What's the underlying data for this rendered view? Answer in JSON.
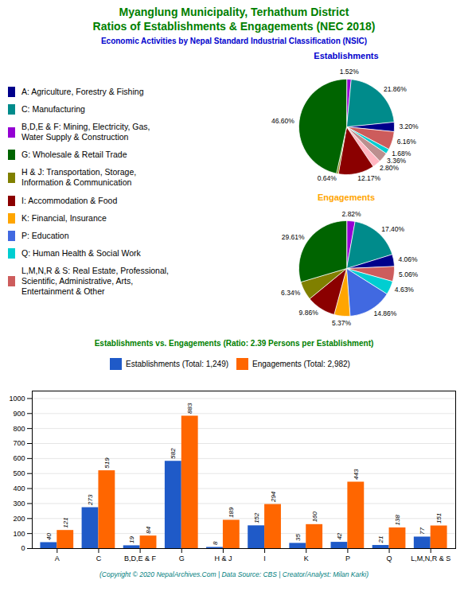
{
  "title": "Myanglung Municipality, Terhathum District\nRatios of Establishments & Engagements (NEC 2018)",
  "title_color": "#008000",
  "subtitle": "Economic Activities by Nepal Standard Industrial Classification (NSIC)",
  "subtitle_color": "#0000CD",
  "legend_entries": [
    {
      "name": "A: Agriculture, Forestry & Fishing",
      "color": "#00008B"
    },
    {
      "name": "C: Manufacturing",
      "color": "#008B8B"
    },
    {
      "name": "B,D,E & F: Mining, Electricity, Gas,\nWater Supply & Construction",
      "color": "#9400D3"
    },
    {
      "name": "G: Wholesale & Retail Trade",
      "color": "#006400"
    },
    {
      "name": "H & J: Transportation, Storage,\nInformation & Communication",
      "color": "#808000"
    },
    {
      "name": "I: Accommodation & Food",
      "color": "#8B0000"
    },
    {
      "name": "K: Financial, Insurance",
      "color": "#FFA500"
    },
    {
      "name": "P: Education",
      "color": "#4169E1"
    },
    {
      "name": "Q: Human Health & Social Work",
      "color": "#00CED1"
    },
    {
      "name": "L,M,N,R & S: Real Estate, Professional,\nScientific, Administrative, Arts,\nEntertainment & Other",
      "color": "#CD5C5C"
    }
  ],
  "annotations": [
    {
      "text": "(Copyright © 2020 NepalArchives.Com | Data Source: CBS | Creator/Analyst: Milan Karki)",
      "color": "#008080"
    }
  ],
  "chart_data": [
    {
      "type": "pie",
      "title": "Establishments",
      "title_color": "#0000CD",
      "values": [
        1.52,
        21.86,
        3.2,
        6.16,
        1.68,
        3.36,
        2.8,
        12.17,
        0.64,
        46.6
      ],
      "value_labels": [
        "1.52%",
        "21.86%",
        "3.20%",
        "6.16%",
        "1.68%",
        "3.36%",
        "2.80%",
        "12.17%",
        "0.64%",
        "46.60%"
      ],
      "colors": [
        "#9400D3",
        "#008B8B",
        "#00008B",
        "#CD5C5C",
        "#00CED1",
        "#BC8F8F",
        "#FFB6C1",
        "#8B0000",
        "#808000",
        "#006400"
      ],
      "data_labels": true
    },
    {
      "type": "pie",
      "title": "Engagements",
      "title_color": "#FFA500",
      "values": [
        2.82,
        17.4,
        4.06,
        5.06,
        4.63,
        14.86,
        5.37,
        9.86,
        6.34,
        29.61
      ],
      "value_labels": [
        "2.82%",
        "17.40%",
        "4.06%",
        "5.06%",
        "4.63%",
        "14.86%",
        "5.37%",
        "9.86%",
        "6.34%",
        "29.61%"
      ],
      "colors": [
        "#9400D3",
        "#008B8B",
        "#00008B",
        "#CD5C5C",
        "#00CED1",
        "#4169E1",
        "#FFA500",
        "#8B0000",
        "#808000",
        "#006400"
      ],
      "data_labels": true
    },
    {
      "type": "bar",
      "title": "Establishments vs. Engagements (Ratio: 2.39 Persons per Establishment)",
      "title_color": "#008000",
      "categories": [
        "A",
        "C",
        "B,D,E & F",
        "G",
        "H & J",
        "I",
        "K",
        "P",
        "Q",
        "L,M,N,R & S"
      ],
      "series": [
        {
          "name": "Establishments (Total: 1,249)",
          "color": "#1F5AC8",
          "values": [
            40,
            273,
            19,
            582,
            8,
            152,
            35,
            42,
            21,
            77
          ]
        },
        {
          "name": "Engagements (Total: 2,982)",
          "color": "#FF6600",
          "values": [
            121,
            519,
            84,
            883,
            189,
            294,
            160,
            443,
            138,
            151
          ]
        }
      ],
      "ylim": [
        0,
        1050
      ],
      "yticks": [
        0,
        100,
        200,
        300,
        400,
        500,
        600,
        700,
        800,
        900,
        1000
      ],
      "grid": true,
      "legend": "top",
      "data_labels": true
    }
  ]
}
